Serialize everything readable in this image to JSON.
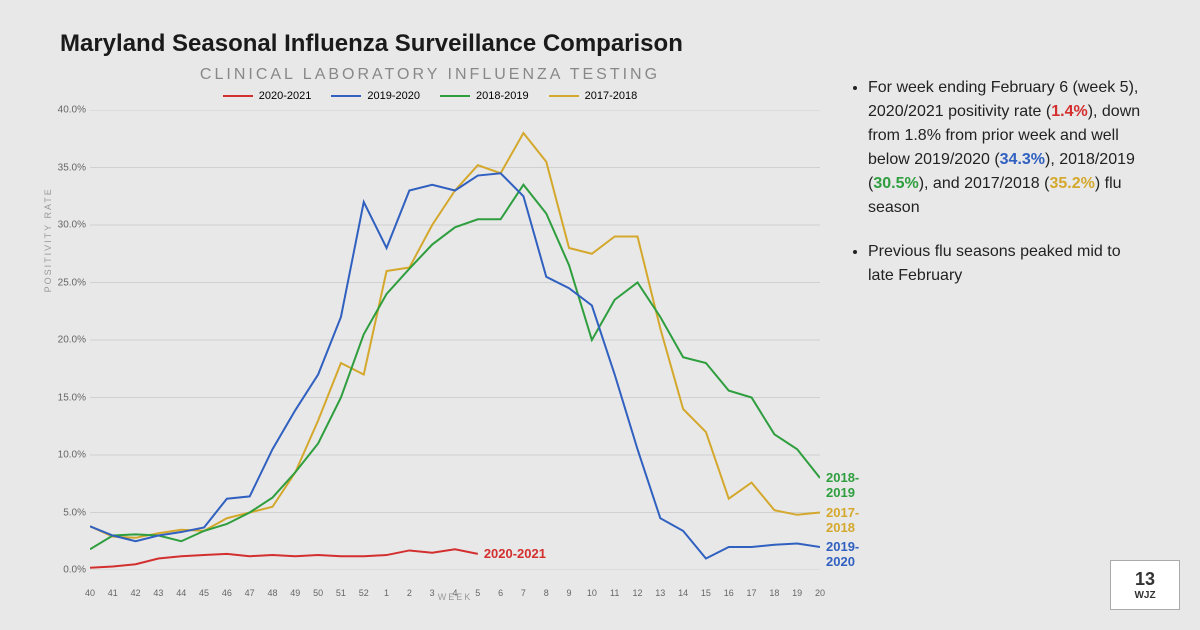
{
  "title": "Maryland Seasonal Influenza Surveillance Comparison",
  "subtitle": "CLINICAL LABORATORY INFLUENZA TESTING",
  "chart": {
    "type": "line",
    "x_label": "WEEK",
    "y_label": "POSITIVITY RATE",
    "weeks": [
      40,
      41,
      42,
      43,
      44,
      45,
      46,
      47,
      48,
      49,
      50,
      51,
      52,
      1,
      2,
      3,
      4,
      5,
      6,
      7,
      8,
      9,
      10,
      11,
      12,
      13,
      14,
      15,
      16,
      17,
      18,
      19,
      20
    ],
    "ylim": [
      0,
      40
    ],
    "ytick_step": 5,
    "y_tick_labels": [
      "0.0%",
      "5.0%",
      "10.0%",
      "15.0%",
      "20.0%",
      "25.0%",
      "30.0%",
      "35.0%",
      "40.0%"
    ],
    "grid_color": "#d0d0d0",
    "background_color": "#e8e8e8",
    "line_width": 2,
    "legend_labels": {
      "s2020_2021": "2020-2021",
      "s2019_2020": "2019-2020",
      "s2018_2019": "2018-2019",
      "s2017_2018": "2017-2018"
    },
    "colors": {
      "s2020_2021": "#d32f2f",
      "s2019_2020": "#3060c0",
      "s2018_2019": "#2e9e3e",
      "s2017_2018": "#d4a82c"
    },
    "series": {
      "s2020_2021": [
        0.2,
        0.3,
        0.5,
        1.0,
        1.2,
        1.3,
        1.4,
        1.2,
        1.3,
        1.2,
        1.3,
        1.2,
        1.2,
        1.3,
        1.7,
        1.5,
        1.8,
        1.4
      ],
      "s2019_2020": [
        3.8,
        3.0,
        2.5,
        3.0,
        3.3,
        3.7,
        6.2,
        6.4,
        10.5,
        13.9,
        17.0,
        22.0,
        32.0,
        28.0,
        33.0,
        33.5,
        33.0,
        34.3,
        34.5,
        32.5,
        25.5,
        24.5,
        23.0,
        17.0,
        10.5,
        4.5,
        3.4,
        1.0,
        2.0,
        2.0,
        2.2,
        2.3,
        2.0
      ],
      "s2018_2019": [
        1.8,
        3.0,
        3.1,
        3.0,
        2.5,
        3.4,
        4.0,
        5.0,
        6.3,
        8.5,
        11.0,
        15.0,
        20.5,
        24.0,
        26.2,
        28.3,
        29.8,
        30.5,
        30.5,
        33.5,
        31.0,
        26.5,
        20.0,
        23.5,
        25.0,
        22.0,
        18.5,
        18.0,
        15.6,
        15.0,
        11.8,
        10.5,
        8.0
      ],
      "s2017_2018": [
        3.8,
        2.9,
        2.8,
        3.2,
        3.5,
        3.4,
        4.5,
        5.0,
        5.5,
        8.5,
        13.0,
        18.0,
        17.0,
        26.0,
        26.3,
        30.0,
        33.0,
        35.2,
        34.5,
        38.0,
        35.5,
        28.0,
        27.5,
        29.0,
        29.0,
        21.0,
        14.0,
        12.0,
        6.2,
        7.6,
        5.2,
        4.8,
        5.0
      ]
    },
    "end_labels": {
      "s2020_2021": "2020-2021",
      "s2019_2020": "2019-2020",
      "s2018_2019": "2018-2019",
      "s2017_2018": "2017-2018"
    }
  },
  "sidebar": {
    "bullet1_pre": "For week ending February 6 (week 5), 2020/2021 positivity rate (",
    "rate_2020_2021": "1.4%",
    "bullet1_mid1": "), down from 1.8% from prior week and well below 2019/2020 (",
    "rate_2019_2020": "34.3%",
    "bullet1_mid2": "), 2018/2019 (",
    "rate_2018_2019": "30.5%",
    "bullet1_mid3": "), and 2017/2018 (",
    "rate_2017_2018": "35.2%",
    "bullet1_end": ") flu season",
    "bullet2": "Previous flu seasons peaked mid to late February"
  },
  "logo": {
    "channel": "13",
    "call": "WJZ"
  }
}
